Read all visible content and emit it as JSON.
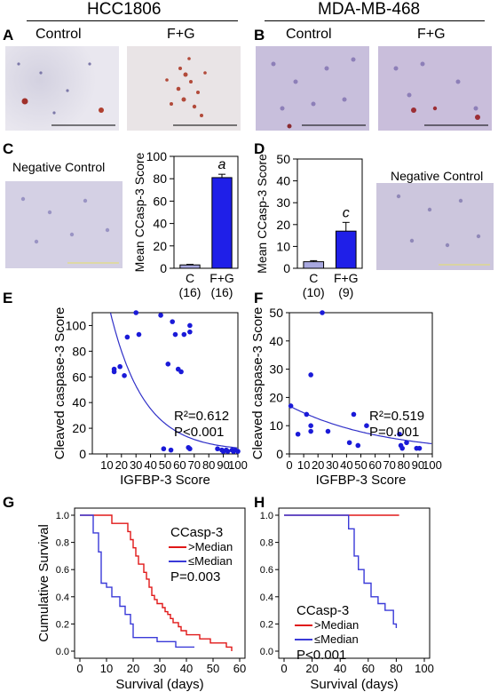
{
  "headers": {
    "left": "HCC1806",
    "right": "MDA-MB-468"
  },
  "panel_labels": {
    "A": "A",
    "B": "B",
    "C": "C",
    "D": "D",
    "E": "E",
    "F": "F",
    "G": "G",
    "H": "H"
  },
  "micrographs": {
    "a_control": "Control",
    "a_treated": "F+G",
    "b_control": "Control",
    "b_treated": "F+G",
    "c_negative": "Negative Control",
    "d_negative": "Negative Control"
  },
  "colors": {
    "bar_c": "#a8a8e0",
    "bar_fg": "#1f1fe8",
    "red": "#e01818",
    "blue": "#3a3ad8",
    "fit": "#3030c8"
  },
  "chart_data": [
    {
      "id": "C",
      "type": "bar",
      "ylabel": "Mean CCasp-3 Score",
      "ylim": [
        0,
        100
      ],
      "yticks": [
        0,
        20,
        40,
        60,
        80,
        100
      ],
      "categories": [
        "C",
        "F+G"
      ],
      "category_n": [
        "(16)",
        "(16)"
      ],
      "values": [
        3,
        81
      ],
      "errors": [
        0.5,
        3
      ],
      "annotation": "a"
    },
    {
      "id": "D",
      "type": "bar",
      "ylabel": "Mean CCasp-3 Score",
      "ylim": [
        0,
        50
      ],
      "yticks": [
        0,
        10,
        20,
        30,
        40,
        50
      ],
      "categories": [
        "C",
        "F+G"
      ],
      "category_n": [
        "(10)",
        "(9)"
      ],
      "values": [
        3,
        17
      ],
      "errors": [
        0.5,
        4
      ],
      "annotation": "c"
    },
    {
      "id": "E",
      "type": "scatter",
      "xlabel": "IGFBP-3 Score",
      "ylabel": "Cleaved caspase-3 Score",
      "xlim": [
        0,
        100
      ],
      "ylim": [
        0,
        110
      ],
      "xticks": [
        10,
        20,
        30,
        40,
        50,
        60,
        70,
        80,
        90,
        100
      ],
      "yticks": [
        0,
        20,
        40,
        60,
        80,
        100
      ],
      "stat1": "R²=0.612",
      "stat2": "P<0.001",
      "points": [
        [
          15,
          66
        ],
        [
          15,
          64
        ],
        [
          19,
          68
        ],
        [
          22,
          61
        ],
        [
          24,
          91
        ],
        [
          30,
          110
        ],
        [
          32,
          93
        ],
        [
          47,
          108
        ],
        [
          52,
          70
        ],
        [
          55,
          103
        ],
        [
          57,
          93
        ],
        [
          59,
          66
        ],
        [
          61,
          64
        ],
        [
          63,
          93
        ],
        [
          67,
          100
        ],
        [
          67,
          95
        ],
        [
          49,
          4
        ],
        [
          54,
          3
        ],
        [
          66,
          5
        ],
        [
          67,
          4
        ],
        [
          86,
          4
        ],
        [
          89,
          3
        ],
        [
          90,
          2
        ],
        [
          92,
          3
        ],
        [
          93,
          2
        ],
        [
          96,
          3
        ],
        [
          97,
          2
        ],
        [
          98,
          3
        ],
        [
          100,
          2
        ]
      ],
      "fit": {
        "a": 2.2,
        "b": 2.6,
        "k": 1.25
      }
    },
    {
      "id": "F",
      "type": "scatter",
      "xlabel": "IGFBP-3 Score",
      "ylabel": "Cleaved caspase-3 Score",
      "xlim": [
        0,
        100
      ],
      "ylim": [
        0,
        50
      ],
      "xticks": [
        0,
        10,
        20,
        30,
        40,
        50,
        60,
        70,
        80,
        90,
        100
      ],
      "yticks": [
        0,
        10,
        20,
        30,
        40,
        50
      ],
      "stat1": "R²=0.519",
      "stat2": "P=0.001",
      "points": [
        [
          1,
          17
        ],
        [
          6,
          7
        ],
        [
          12,
          14
        ],
        [
          15,
          28
        ],
        [
          15,
          10
        ],
        [
          15,
          8
        ],
        [
          23,
          50
        ],
        [
          27,
          8
        ],
        [
          45,
          14
        ],
        [
          42,
          4
        ],
        [
          48,
          3
        ],
        [
          54,
          10
        ],
        [
          77,
          7
        ],
        [
          78,
          3
        ],
        [
          79,
          2
        ],
        [
          82,
          4
        ],
        [
          89,
          2
        ],
        [
          91,
          2
        ]
      ],
      "fit": {
        "a": 17,
        "b": -2.0,
        "k": 0.0155
      }
    },
    {
      "id": "G",
      "type": "line",
      "subtype": "kaplan-meier",
      "xlabel": "Survival (days)",
      "ylabel": "Cumulative Survival",
      "xlim": [
        0,
        60
      ],
      "ylim": [
        0,
        1
      ],
      "xticks": [
        0,
        10,
        20,
        30,
        40,
        50,
        60
      ],
      "yticks": [
        0,
        0.2,
        0.4,
        0.6,
        0.8,
        1.0
      ],
      "legend_title": "CCasp-3",
      "stat": "P=0.003",
      "series": [
        {
          "name": ">Median",
          "color": "#e01818",
          "x": [
            0,
            12,
            18,
            19,
            20,
            21,
            22,
            24,
            25,
            26,
            27,
            28,
            29,
            30,
            31,
            32,
            33,
            34,
            35,
            36,
            37,
            38,
            40,
            42,
            45,
            49,
            53,
            55,
            57
          ],
          "y": [
            1.0,
            0.94,
            0.88,
            0.82,
            0.76,
            0.7,
            0.64,
            0.58,
            0.53,
            0.47,
            0.41,
            0.38,
            0.35,
            0.35,
            0.32,
            0.29,
            0.27,
            0.24,
            0.21,
            0.21,
            0.18,
            0.15,
            0.12,
            0.12,
            0.09,
            0.06,
            0.06,
            0.03,
            0.0
          ]
        },
        {
          "name": "≤Median",
          "color": "#3a3ad8",
          "x": [
            0,
            5,
            7,
            8,
            10,
            12,
            15,
            17,
            19,
            20,
            29,
            36,
            43
          ],
          "y": [
            1.0,
            0.87,
            0.73,
            0.5,
            0.47,
            0.4,
            0.33,
            0.27,
            0.2,
            0.1,
            0.07,
            0.03,
            0.03
          ]
        }
      ]
    },
    {
      "id": "H",
      "type": "line",
      "subtype": "kaplan-meier",
      "xlabel": "Survival (days)",
      "ylabel": "",
      "xlim": [
        0,
        100
      ],
      "ylim": [
        0,
        1
      ],
      "xticks": [
        0,
        20,
        40,
        60,
        80,
        100
      ],
      "yticks": [
        0,
        0.2,
        0.4,
        0.6,
        0.8,
        1.0
      ],
      "legend_title": "CCasp-3",
      "stat": "P<0.001",
      "series": [
        {
          "name": ">Median",
          "color": "#e01818",
          "x": [
            0,
            82
          ],
          "y": [
            1.0,
            1.0
          ]
        },
        {
          "name": "≤Median",
          "color": "#3a3ad8",
          "x": [
            0,
            46,
            50,
            53,
            57,
            62,
            67,
            72,
            78,
            80
          ],
          "y": [
            1.0,
            0.9,
            0.7,
            0.6,
            0.5,
            0.4,
            0.35,
            0.3,
            0.2,
            0.17
          ]
        }
      ]
    }
  ]
}
